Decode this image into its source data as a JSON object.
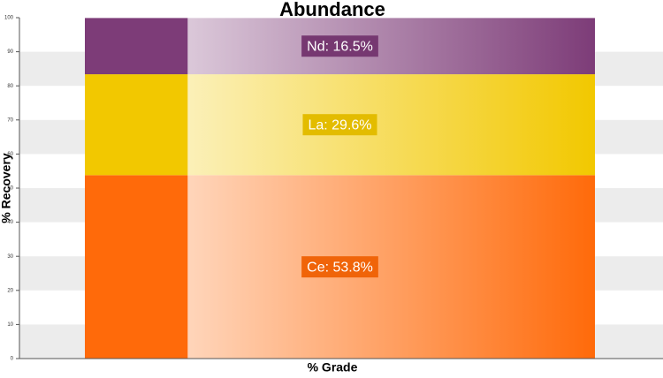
{
  "chart_data": {
    "type": "stacked-bar",
    "title": "Abundance",
    "x_label": "% Grade",
    "y_label": "% Recovery",
    "ylim": [
      0,
      100
    ],
    "yticks": [
      0,
      10,
      20,
      30,
      40,
      50,
      60,
      70,
      80,
      90,
      100
    ],
    "grid": "bands",
    "series": [
      {
        "name": "Ce",
        "color": "#ff6a0a",
        "values": [
          53.8
        ],
        "value_labels": [
          "Ce: 53.8%"
        ]
      },
      {
        "name": "La",
        "color": "#f2c800",
        "values": [
          29.6
        ],
        "value_labels": [
          "La: 29.6%"
        ]
      },
      {
        "name": "Nd",
        "color": "#7d3c78",
        "values": [
          16.5
        ],
        "value_labels": [
          "Nd: 16.5%"
        ]
      }
    ]
  }
}
